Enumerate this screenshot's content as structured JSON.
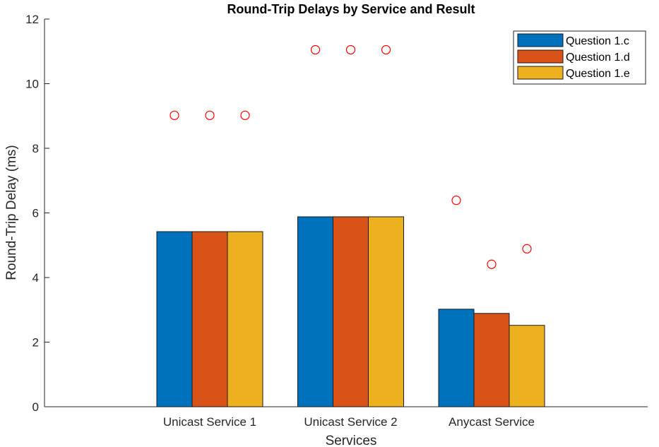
{
  "chart_data": {
    "type": "bar",
    "title": "Round-Trip Delays by Service and Result",
    "xlabel": "Services",
    "ylabel": "Round-Trip Delay (ms)",
    "categories": [
      "Unicast Service 1",
      "Unicast Service 2",
      "Anycast Service"
    ],
    "ylim": [
      0,
      12
    ],
    "yticks": [
      0,
      2,
      4,
      6,
      8,
      10,
      12
    ],
    "grid": false,
    "legend_position": "top-right",
    "series": [
      {
        "name": "Question 1.c",
        "color": "#0072BD",
        "values": [
          5.42,
          5.88,
          3.02
        ]
      },
      {
        "name": "Question 1.d",
        "color": "#D95319",
        "values": [
          5.42,
          5.88,
          2.89
        ]
      },
      {
        "name": "Question 1.e",
        "color": "#EDB120",
        "values": [
          5.42,
          5.88,
          2.52
        ]
      }
    ],
    "markers": {
      "style": "circle",
      "color": "#FF0000",
      "values": [
        [
          9.02,
          9.02,
          9.02
        ],
        [
          11.05,
          11.05,
          11.05
        ],
        [
          6.39,
          4.41,
          4.89
        ]
      ]
    }
  }
}
